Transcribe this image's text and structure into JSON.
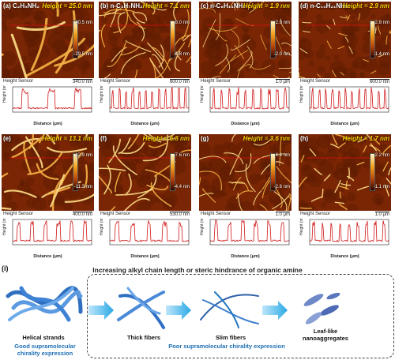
{
  "panels": [
    {
      "id": "a",
      "label": "(a) C₂H₅NH₂",
      "height": "Height = 25.0 nm",
      "cmax": "40.5 nm",
      "cmin": "-29.5 nm",
      "scale": "340.0 nm",
      "hs": "Height Sensor",
      "xlabel": "Distance (μm)",
      "ylabel": "Height (nm)"
    },
    {
      "id": "b",
      "label": "(b) n-C₃H₇NH₂",
      "height": "Height = 7.1 nm",
      "cmax": "8.0 nm",
      "cmin": "-4.8 nm",
      "scale": "600.0 nm",
      "hs": "Height Sensor",
      "xlabel": "Distance (μm)",
      "ylabel": "Height (nm)"
    },
    {
      "id": "c",
      "label": "(c) n-C₆H₁₃NH₂",
      "height": "Height = 1.9 nm",
      "cmax": "2.9 nm",
      "cmin": "-2.0 nm",
      "scale": "1.0 μm",
      "hs": "Height Sensor",
      "xlabel": "Distance (μm)",
      "ylabel": "Height (nm)"
    },
    {
      "id": "d",
      "label": "(d) n-C₁₀H₂₁NH₂",
      "height": "Height = 2.9 nm",
      "cmax": "2.8 nm",
      "cmin": "-1.4 nm",
      "scale": "600.0 nm",
      "hs": "Height Sensor",
      "xlabel": "Distance (μm)",
      "ylabel": "Height (nm)"
    },
    {
      "id": "e",
      "label": "(e)",
      "height": "Height = 13.1 nm",
      "cmax": "12.9 nm",
      "cmin": "-11.3 nm",
      "scale": "400.0 nm",
      "hs": "Height Sensor",
      "xlabel": "Distance (μm)",
      "ylabel": "Height (nm)"
    },
    {
      "id": "f",
      "label": "(f)",
      "height": "Height = 6.8 nm",
      "cmax": "7.6 nm",
      "cmin": "-4.4 nm",
      "scale": "530.0 nm",
      "hs": "Height Sensor",
      "xlabel": "Distance (μm)",
      "ylabel": "Height (nm)"
    },
    {
      "id": "g",
      "label": "(g)",
      "height": "Height = 3.6 nm",
      "cmax": "4.4 nm",
      "cmin": "-2.6 nm",
      "scale": "1.0 μm",
      "hs": "Height Sensor",
      "xlabel": "Distance (μm)",
      "ylabel": "Height (nm)"
    },
    {
      "id": "h",
      "label": "(h)",
      "height": "Height = 1.7 nm",
      "cmax": "2.2 nm",
      "cmin": "-1.1 nm",
      "scale": "1.0 μm",
      "hs": "Height Sensor",
      "xlabel": "Distance (μm)",
      "ylabel": "Height (nm)"
    }
  ],
  "bottom": {
    "label": "(i)",
    "title": "Increasing alkyl chain length or steric hindrance of organic amine",
    "helical": "Helical strands",
    "good": "Good supramolecular",
    "good2": "chirality expression",
    "thick": "Thick fibers",
    "slim": "Slim fibers",
    "poor": "Poor supramolecular chirality expression",
    "leaf": "Leaf-like",
    "leaf2": "nanoaggregates"
  },
  "colors": {
    "line": "#d01818",
    "accent": "#1f6fb4"
  }
}
